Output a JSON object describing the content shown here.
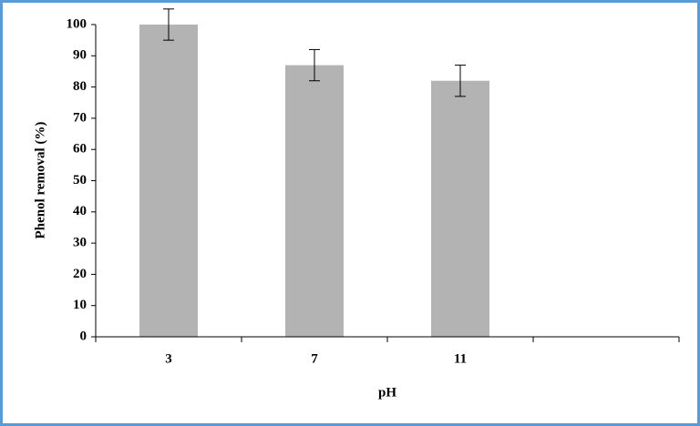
{
  "chart_data": {
    "type": "bar",
    "x_label": "pH",
    "y_label": "Phenol removal (%)",
    "categories": [
      "3",
      "7",
      "11",
      null
    ],
    "values": [
      100,
      87,
      82,
      null
    ],
    "errors": [
      5,
      5,
      5,
      null
    ],
    "color": "#b3b3b3",
    "ylim": [
      0,
      100
    ],
    "yticks": [
      0,
      10,
      20,
      30,
      40,
      50,
      60,
      70,
      80,
      90,
      100
    ],
    "grid": false
  }
}
